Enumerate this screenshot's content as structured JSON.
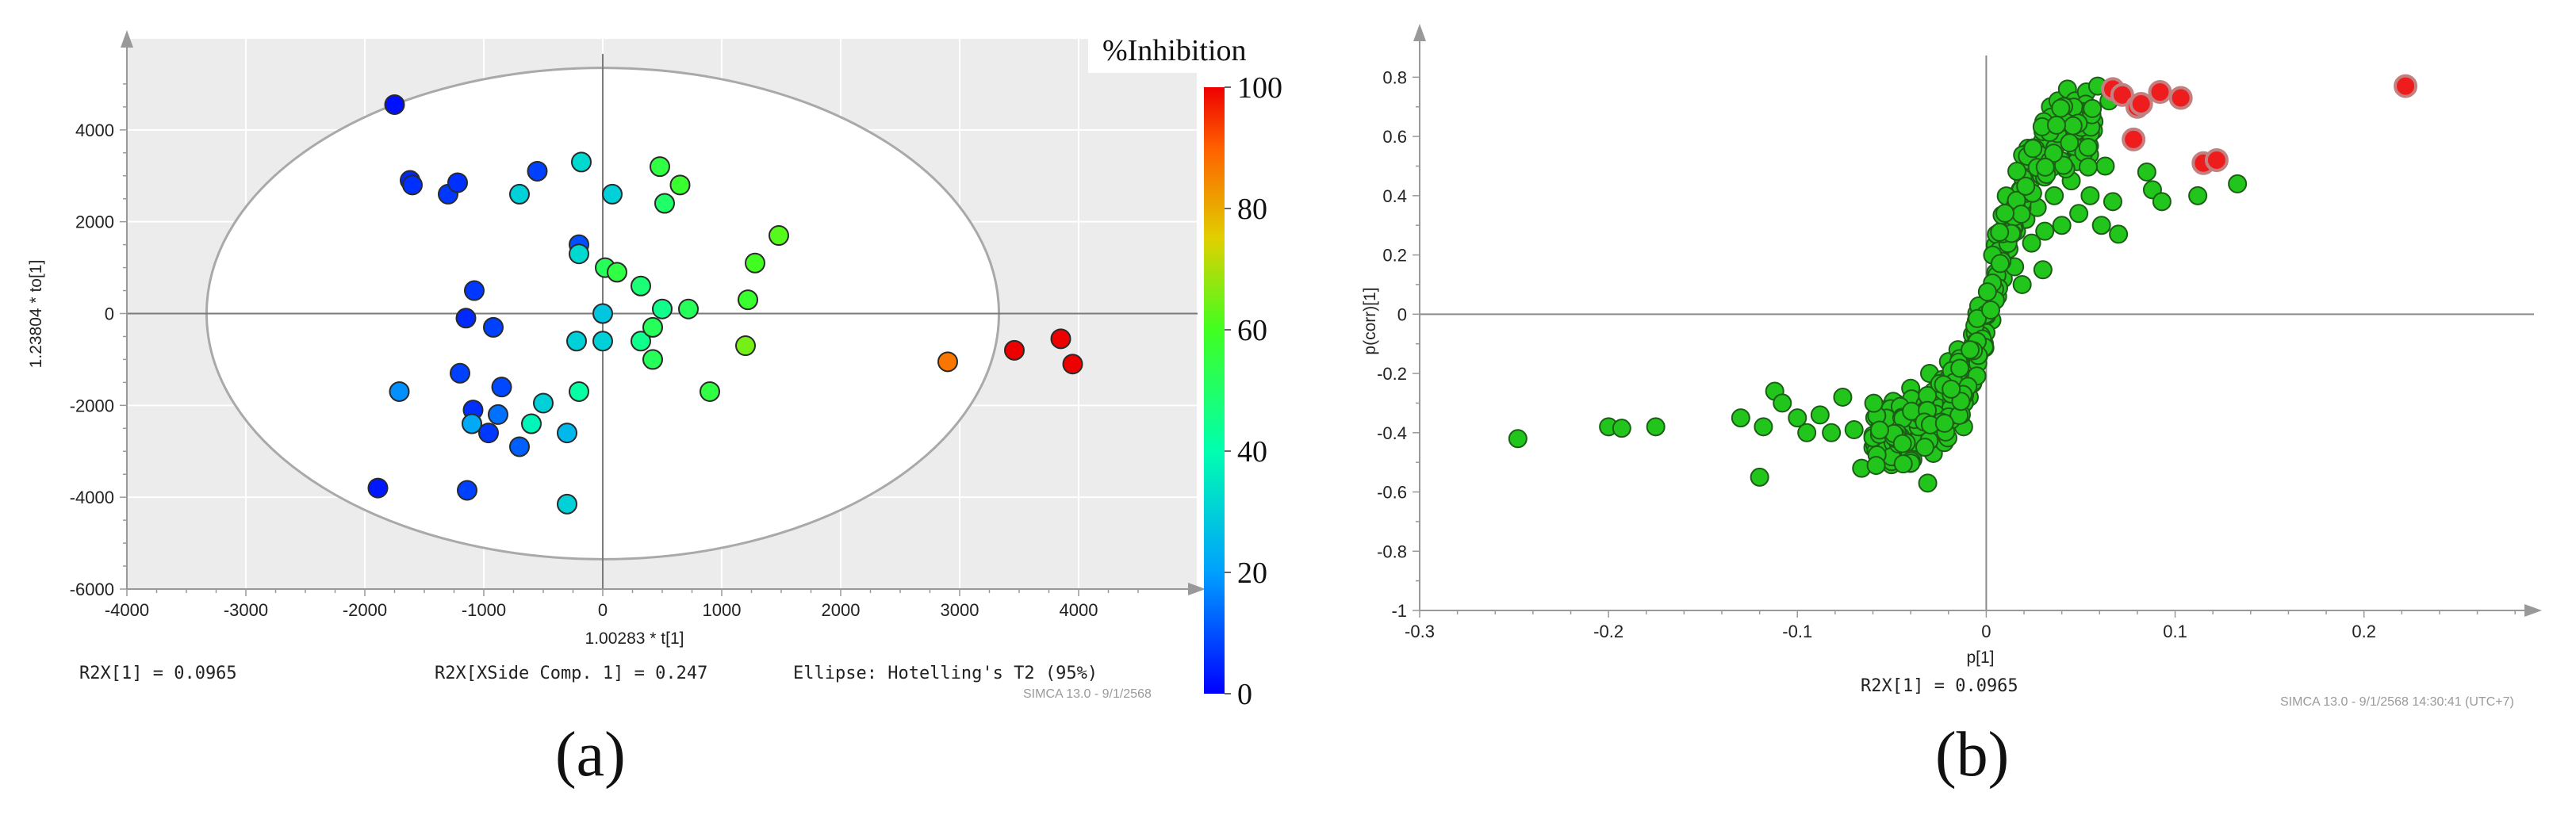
{
  "chart_data": [
    {
      "type": "scatter",
      "panel_label": "(a)",
      "xlabel": "1.00283 * t[1]",
      "ylabel": "1.23804 * to[1]",
      "xlim": [
        -4000,
        5000
      ],
      "ylim": [
        -6000,
        6000
      ],
      "xticks": [
        "-4000",
        "-3000",
        "-2000",
        "-1000",
        "0",
        "1000",
        "2000",
        "3000",
        "4000"
      ],
      "yticks": [
        "-6000",
        "-4000",
        "-2000",
        "0",
        "2000",
        "4000"
      ],
      "colorbar": {
        "title": "%Inhibition",
        "min": 0,
        "max": 100,
        "ticks": [
          "0",
          "20",
          "40",
          "60",
          "80",
          "100"
        ]
      },
      "ellipse": {
        "cx": 0,
        "cy": 0,
        "rx": 3330,
        "ry": 5350
      },
      "footer": {
        "r2x": "R2X[1] = 0.0965",
        "r2x_side": "R2X[XSide Comp. 1] = 0.247",
        "ellipse_label": "Ellipse: Hotelling's T2 (95%)",
        "software": "SIMCA 13.0 - 9/1/2568"
      },
      "points": [
        {
          "x": -1750,
          "y": 4550,
          "c": 2
        },
        {
          "x": -1620,
          "y": 2900,
          "c": 5
        },
        {
          "x": -1600,
          "y": 2800,
          "c": 6
        },
        {
          "x": -1300,
          "y": 2600,
          "c": 7
        },
        {
          "x": -1220,
          "y": 2850,
          "c": 6
        },
        {
          "x": -550,
          "y": 3100,
          "c": 8
        },
        {
          "x": -700,
          "y": 2600,
          "c": 30
        },
        {
          "x": -180,
          "y": 3300,
          "c": 32
        },
        {
          "x": 80,
          "y": 2600,
          "c": 30
        },
        {
          "x": -200,
          "y": 1500,
          "c": 10
        },
        {
          "x": -200,
          "y": 1300,
          "c": 32
        },
        {
          "x": 480,
          "y": 3200,
          "c": 55
        },
        {
          "x": 650,
          "y": 2800,
          "c": 58
        },
        {
          "x": 520,
          "y": 2400,
          "c": 50
        },
        {
          "x": 20,
          "y": 1000,
          "c": 52
        },
        {
          "x": 120,
          "y": 900,
          "c": 55
        },
        {
          "x": 320,
          "y": 600,
          "c": 48
        },
        {
          "x": 1480,
          "y": 1700,
          "c": 62
        },
        {
          "x": 1280,
          "y": 1100,
          "c": 60
        },
        {
          "x": 1220,
          "y": 300,
          "c": 58
        },
        {
          "x": 500,
          "y": 100,
          "c": 45
        },
        {
          "x": 720,
          "y": 100,
          "c": 52
        },
        {
          "x": -1080,
          "y": 500,
          "c": 7
        },
        {
          "x": -1150,
          "y": -100,
          "c": 5
        },
        {
          "x": -920,
          "y": -300,
          "c": 8
        },
        {
          "x": 0,
          "y": 0,
          "c": 28
        },
        {
          "x": -220,
          "y": -600,
          "c": 30
        },
        {
          "x": 0,
          "y": -600,
          "c": 30
        },
        {
          "x": 320,
          "y": -600,
          "c": 45
        },
        {
          "x": 420,
          "y": -300,
          "c": 52
        },
        {
          "x": 420,
          "y": -1000,
          "c": 52
        },
        {
          "x": 1200,
          "y": -700,
          "c": 65
        },
        {
          "x": 900,
          "y": -1700,
          "c": 55
        },
        {
          "x": -200,
          "y": -1700,
          "c": 42
        },
        {
          "x": -1710,
          "y": -1700,
          "c": 18
        },
        {
          "x": -1200,
          "y": -1300,
          "c": 8
        },
        {
          "x": -850,
          "y": -1600,
          "c": 9
        },
        {
          "x": -1090,
          "y": -2100,
          "c": 6
        },
        {
          "x": -1100,
          "y": -2400,
          "c": 22
        },
        {
          "x": -880,
          "y": -2200,
          "c": 14
        },
        {
          "x": -960,
          "y": -2600,
          "c": 7
        },
        {
          "x": -500,
          "y": -1950,
          "c": 30
        },
        {
          "x": -600,
          "y": -2400,
          "c": 38
        },
        {
          "x": -700,
          "y": -2900,
          "c": 12
        },
        {
          "x": -300,
          "y": -2600,
          "c": 25
        },
        {
          "x": -1890,
          "y": -3800,
          "c": 3
        },
        {
          "x": -1140,
          "y": -3850,
          "c": 8
        },
        {
          "x": -300,
          "y": -4150,
          "c": 30
        },
        {
          "x": 2900,
          "y": -1050,
          "c": 87
        },
        {
          "x": 3460,
          "y": -800,
          "c": 100
        },
        {
          "x": 3850,
          "y": -550,
          "c": 100
        },
        {
          "x": 3950,
          "y": -1100,
          "c": 100
        }
      ]
    },
    {
      "type": "scatter",
      "panel_label": "(b)",
      "xlabel": "p[1]",
      "ylabel": "p(corr)[1]",
      "xlim": [
        -0.3,
        0.29
      ],
      "ylim": [
        -1,
        0.9
      ],
      "xticks": [
        "-0.3",
        "-0.2",
        "-0.1",
        "0",
        "0.1",
        "0.2"
      ],
      "yticks": [
        "-1",
        "-0.8",
        "-0.6",
        "-0.4",
        "-0.2",
        "0",
        "0.2",
        "0.4",
        "0.6",
        "0.8"
      ],
      "footer": {
        "r2x": "R2X[1] = 0.0965",
        "software": "SIMCA 13.0 - 9/1/2568 14:30:41 (UTC+7)"
      },
      "red_points": [
        {
          "x": 0.067,
          "y": 0.76
        },
        {
          "x": 0.072,
          "y": 0.74
        },
        {
          "x": 0.08,
          "y": 0.7
        },
        {
          "x": 0.082,
          "y": 0.71
        },
        {
          "x": 0.092,
          "y": 0.75
        },
        {
          "x": 0.103,
          "y": 0.73
        },
        {
          "x": 0.078,
          "y": 0.59
        },
        {
          "x": 0.115,
          "y": 0.51
        },
        {
          "x": 0.122,
          "y": 0.52
        },
        {
          "x": 0.222,
          "y": 0.77
        }
      ],
      "green_points": [
        {
          "x": -0.248,
          "y": -0.42
        },
        {
          "x": -0.2,
          "y": -0.38
        },
        {
          "x": -0.193,
          "y": -0.385
        },
        {
          "x": -0.175,
          "y": -0.38
        },
        {
          "x": -0.13,
          "y": -0.35
        },
        {
          "x": -0.12,
          "y": -0.55
        },
        {
          "x": -0.118,
          "y": -0.38
        },
        {
          "x": -0.112,
          "y": -0.26
        },
        {
          "x": -0.108,
          "y": -0.3
        },
        {
          "x": -0.1,
          "y": -0.35
        },
        {
          "x": -0.095,
          "y": -0.4
        },
        {
          "x": -0.088,
          "y": -0.34
        },
        {
          "x": -0.082,
          "y": -0.4
        },
        {
          "x": -0.076,
          "y": -0.28
        },
        {
          "x": -0.07,
          "y": -0.39
        },
        {
          "x": -0.066,
          "y": -0.52
        },
        {
          "x": -0.06,
          "y": -0.45
        },
        {
          "x": -0.055,
          "y": -0.33
        },
        {
          "x": -0.052,
          "y": -0.42
        },
        {
          "x": -0.048,
          "y": -0.3
        },
        {
          "x": -0.045,
          "y": -0.5
        },
        {
          "x": -0.043,
          "y": -0.38
        },
        {
          "x": -0.04,
          "y": -0.25
        },
        {
          "x": -0.037,
          "y": -0.44
        },
        {
          "x": -0.035,
          "y": -0.33
        },
        {
          "x": -0.033,
          "y": -0.4
        },
        {
          "x": -0.031,
          "y": -0.57
        },
        {
          "x": -0.03,
          "y": -0.2
        },
        {
          "x": -0.028,
          "y": -0.47
        },
        {
          "x": -0.027,
          "y": -0.28
        },
        {
          "x": -0.025,
          "y": -0.36
        },
        {
          "x": -0.023,
          "y": -0.22
        },
        {
          "x": -0.022,
          "y": -0.4
        },
        {
          "x": -0.02,
          "y": -0.16
        },
        {
          "x": -0.018,
          "y": -0.3
        },
        {
          "x": -0.017,
          "y": -0.35
        },
        {
          "x": -0.015,
          "y": -0.12
        },
        {
          "x": -0.014,
          "y": -0.25
        },
        {
          "x": -0.012,
          "y": -0.38
        },
        {
          "x": -0.01,
          "y": -0.18
        },
        {
          "x": -0.009,
          "y": -0.28
        },
        {
          "x": -0.007,
          "y": -0.1
        },
        {
          "x": -0.006,
          "y": -0.2
        },
        {
          "x": -0.004,
          "y": -0.14
        },
        {
          "x": -0.003,
          "y": -0.06
        },
        {
          "x": -0.001,
          "y": -0.1
        },
        {
          "x": 0.001,
          "y": 0.02
        },
        {
          "x": 0.002,
          "y": 0.08
        },
        {
          "x": 0.003,
          "y": -0.02
        },
        {
          "x": 0.005,
          "y": 0.14
        },
        {
          "x": 0.006,
          "y": 0.06
        },
        {
          "x": 0.008,
          "y": 0.2
        },
        {
          "x": 0.009,
          "y": 0.12
        },
        {
          "x": 0.01,
          "y": 0.3
        },
        {
          "x": 0.012,
          "y": 0.22
        },
        {
          "x": 0.013,
          "y": 0.36
        },
        {
          "x": 0.015,
          "y": 0.16
        },
        {
          "x": 0.016,
          "y": 0.28
        },
        {
          "x": 0.018,
          "y": 0.42
        },
        {
          "x": 0.019,
          "y": 0.1
        },
        {
          "x": 0.021,
          "y": 0.32
        },
        {
          "x": 0.022,
          "y": 0.56
        },
        {
          "x": 0.024,
          "y": 0.24
        },
        {
          "x": 0.025,
          "y": 0.46
        },
        {
          "x": 0.027,
          "y": 0.36
        },
        {
          "x": 0.028,
          "y": 0.55
        },
        {
          "x": 0.03,
          "y": 0.15
        },
        {
          "x": 0.031,
          "y": 0.28
        },
        {
          "x": 0.033,
          "y": 0.5
        },
        {
          "x": 0.034,
          "y": 0.7
        },
        {
          "x": 0.036,
          "y": 0.4
        },
        {
          "x": 0.038,
          "y": 0.72
        },
        {
          "x": 0.04,
          "y": 0.3
        },
        {
          "x": 0.042,
          "y": 0.62
        },
        {
          "x": 0.043,
          "y": 0.76
        },
        {
          "x": 0.045,
          "y": 0.45
        },
        {
          "x": 0.047,
          "y": 0.72
        },
        {
          "x": 0.049,
          "y": 0.34
        },
        {
          "x": 0.051,
          "y": 0.6
        },
        {
          "x": 0.053,
          "y": 0.75
        },
        {
          "x": 0.055,
          "y": 0.4
        },
        {
          "x": 0.057,
          "y": 0.65
        },
        {
          "x": 0.059,
          "y": 0.77
        },
        {
          "x": 0.061,
          "y": 0.3
        },
        {
          "x": 0.063,
          "y": 0.5
        },
        {
          "x": 0.065,
          "y": 0.72
        },
        {
          "x": 0.067,
          "y": 0.38
        },
        {
          "x": 0.07,
          "y": 0.27
        },
        {
          "x": 0.085,
          "y": 0.48
        },
        {
          "x": 0.088,
          "y": 0.42
        },
        {
          "x": 0.093,
          "y": 0.38
        },
        {
          "x": 0.112,
          "y": 0.4
        },
        {
          "x": 0.133,
          "y": 0.44
        }
      ]
    }
  ]
}
